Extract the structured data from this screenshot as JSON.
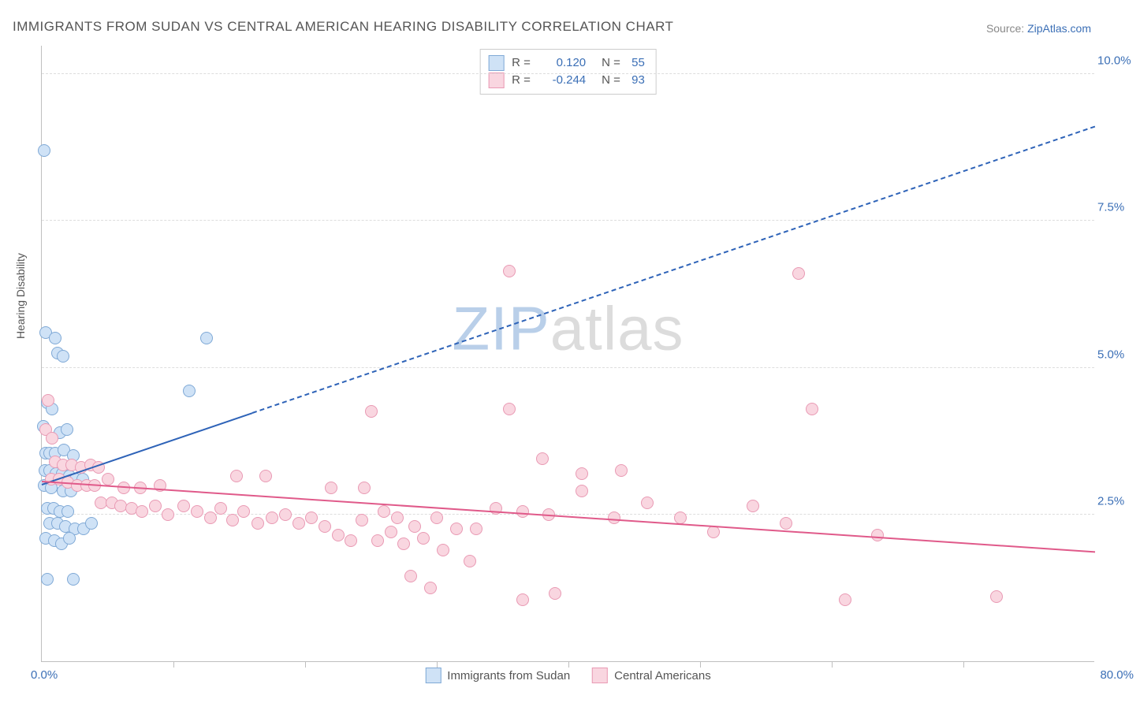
{
  "title": "IMMIGRANTS FROM SUDAN VS CENTRAL AMERICAN HEARING DISABILITY CORRELATION CHART",
  "source_label": "Source:",
  "source_name": "ZipAtlas.com",
  "ylabel": "Hearing Disability",
  "watermark": {
    "head": "ZIP",
    "tail": "atlas",
    "color_head": "#b9cfe9",
    "color_tail": "#dcdcdc"
  },
  "chart": {
    "type": "scatter",
    "xlim": [
      0,
      80
    ],
    "ylim": [
      0,
      10.5
    ],
    "x_origin_label": "0.0%",
    "x_max_label": "80.0%",
    "x_label_color": "#3b6fb6",
    "x_ticks": [
      10,
      20,
      30,
      40,
      50,
      60,
      70
    ],
    "y_gridlines": [
      {
        "v": 2.5,
        "label": "2.5%"
      },
      {
        "v": 5.0,
        "label": "5.0%"
      },
      {
        "v": 7.5,
        "label": "7.5%"
      },
      {
        "v": 10.0,
        "label": "10.0%"
      }
    ],
    "y_label_color": "#3b6fb6",
    "grid_color": "#dddddd",
    "background_color": "#ffffff",
    "marker_radius": 8,
    "marker_border": 1,
    "series": [
      {
        "name": "Immigrants from Sudan",
        "fill": "#cfe2f6",
        "stroke": "#7fa9d6",
        "line_color": "#2e63b8",
        "R": "0.120",
        "N": "55",
        "trend": {
          "x1": 0,
          "y1": 3.0,
          "x2": 80,
          "y2": 9.1,
          "solid_until_x": 16
        },
        "points": [
          [
            0.2,
            8.7
          ],
          [
            0.3,
            5.6
          ],
          [
            1.0,
            5.5
          ],
          [
            1.2,
            5.25
          ],
          [
            1.6,
            5.2
          ],
          [
            12.5,
            5.5
          ],
          [
            0.4,
            4.4
          ],
          [
            0.8,
            4.3
          ],
          [
            1.4,
            3.9
          ],
          [
            1.9,
            3.95
          ],
          [
            0.1,
            4.0
          ],
          [
            0.3,
            3.55
          ],
          [
            0.6,
            3.55
          ],
          [
            1.0,
            3.55
          ],
          [
            1.7,
            3.6
          ],
          [
            2.4,
            3.5
          ],
          [
            0.25,
            3.25
          ],
          [
            0.6,
            3.25
          ],
          [
            1.05,
            3.2
          ],
          [
            1.55,
            3.2
          ],
          [
            2.1,
            3.15
          ],
          [
            2.6,
            3.1
          ],
          [
            3.1,
            3.1
          ],
          [
            0.2,
            3.0
          ],
          [
            0.7,
            2.95
          ],
          [
            1.6,
            2.9
          ],
          [
            2.2,
            2.9
          ],
          [
            11.2,
            4.6
          ],
          [
            0.4,
            2.6
          ],
          [
            0.9,
            2.6
          ],
          [
            1.4,
            2.55
          ],
          [
            2.0,
            2.55
          ],
          [
            0.6,
            2.35
          ],
          [
            1.2,
            2.35
          ],
          [
            1.8,
            2.3
          ],
          [
            2.5,
            2.25
          ],
          [
            3.2,
            2.25
          ],
          [
            3.8,
            2.35
          ],
          [
            0.3,
            2.1
          ],
          [
            0.95,
            2.05
          ],
          [
            1.5,
            2.0
          ],
          [
            2.1,
            2.1
          ],
          [
            0.4,
            1.4
          ],
          [
            2.4,
            1.4
          ]
        ]
      },
      {
        "name": "Central Americans",
        "fill": "#f9d6e0",
        "stroke": "#e99ab4",
        "line_color": "#e05a8a",
        "R": "-0.244",
        "N": "93",
        "trend": {
          "x1": 0,
          "y1": 3.05,
          "x2": 80,
          "y2": 1.85,
          "solid_until_x": 80
        },
        "points": [
          [
            0.5,
            4.45
          ],
          [
            0.3,
            3.95
          ],
          [
            0.8,
            3.8
          ],
          [
            1.0,
            3.4
          ],
          [
            1.6,
            3.35
          ],
          [
            2.3,
            3.35
          ],
          [
            3.0,
            3.3
          ],
          [
            3.7,
            3.35
          ],
          [
            4.3,
            3.3
          ],
          [
            0.7,
            3.1
          ],
          [
            1.3,
            3.1
          ],
          [
            2.0,
            3.05
          ],
          [
            2.7,
            3.0
          ],
          [
            3.4,
            3.0
          ],
          [
            4.0,
            3.0
          ],
          [
            5.0,
            3.1
          ],
          [
            6.2,
            2.95
          ],
          [
            7.5,
            2.95
          ],
          [
            9.0,
            3.0
          ],
          [
            4.5,
            2.7
          ],
          [
            5.3,
            2.7
          ],
          [
            6.0,
            2.65
          ],
          [
            6.8,
            2.6
          ],
          [
            7.6,
            2.55
          ],
          [
            8.6,
            2.65
          ],
          [
            9.6,
            2.5
          ],
          [
            10.8,
            2.65
          ],
          [
            11.8,
            2.55
          ],
          [
            12.8,
            2.45
          ],
          [
            13.6,
            2.6
          ],
          [
            14.5,
            2.4
          ],
          [
            15.3,
            2.55
          ],
          [
            16.4,
            2.35
          ],
          [
            17.5,
            2.45
          ],
          [
            18.5,
            2.5
          ],
          [
            19.5,
            2.35
          ],
          [
            20.5,
            2.45
          ],
          [
            14.8,
            3.15
          ],
          [
            17.0,
            3.15
          ],
          [
            22.0,
            2.95
          ],
          [
            24.5,
            2.95
          ],
          [
            21.5,
            2.3
          ],
          [
            22.5,
            2.15
          ],
          [
            23.5,
            2.05
          ],
          [
            24.3,
            2.4
          ],
          [
            25.5,
            2.05
          ],
          [
            26.5,
            2.2
          ],
          [
            27.5,
            2.0
          ],
          [
            28.3,
            2.3
          ],
          [
            25.0,
            4.25
          ],
          [
            26.0,
            2.55
          ],
          [
            27.0,
            2.45
          ],
          [
            29.0,
            2.1
          ],
          [
            30.0,
            2.45
          ],
          [
            30.5,
            1.9
          ],
          [
            31.5,
            2.25
          ],
          [
            32.5,
            1.7
          ],
          [
            28.0,
            1.45
          ],
          [
            29.5,
            1.25
          ],
          [
            35.5,
            4.3
          ],
          [
            35.5,
            6.65
          ],
          [
            33.0,
            2.25
          ],
          [
            34.5,
            2.6
          ],
          [
            36.5,
            2.55
          ],
          [
            38.5,
            2.5
          ],
          [
            41.0,
            2.9
          ],
          [
            43.5,
            2.45
          ],
          [
            38.0,
            3.45
          ],
          [
            41.0,
            3.2
          ],
          [
            44.0,
            3.25
          ],
          [
            36.5,
            1.05
          ],
          [
            39.0,
            1.15
          ],
          [
            46.0,
            2.7
          ],
          [
            48.5,
            2.45
          ],
          [
            51.0,
            2.2
          ],
          [
            54.0,
            2.65
          ],
          [
            56.5,
            2.35
          ],
          [
            57.5,
            6.6
          ],
          [
            58.5,
            4.3
          ],
          [
            61.0,
            1.05
          ],
          [
            63.5,
            2.15
          ],
          [
            72.5,
            1.1
          ]
        ]
      }
    ],
    "legend_top_labels": {
      "R": "R =",
      "N": "N ="
    },
    "legend_top_value_color": "#3b6fb6"
  }
}
